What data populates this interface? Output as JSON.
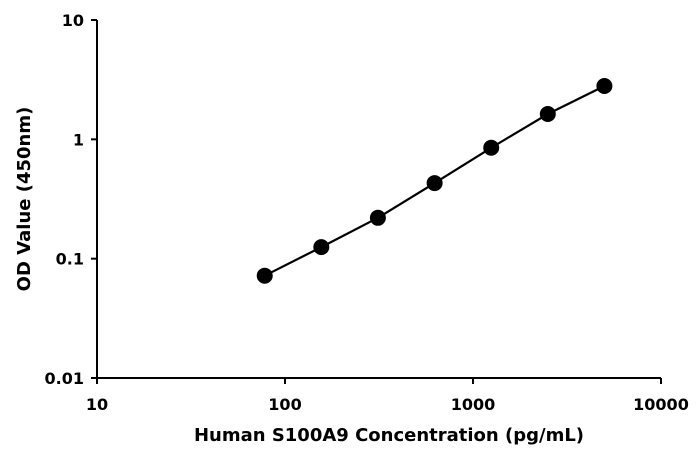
{
  "chart_data": {
    "type": "line",
    "title": "",
    "xlabel": "Human S100A9 Concentration (pg/mL)",
    "ylabel": "OD Value (450nm)",
    "x_scale": "log",
    "y_scale": "log",
    "xlim": [
      10,
      10000
    ],
    "ylim": [
      0.01,
      10
    ],
    "x_ticks": [
      "10",
      "100",
      "1000",
      "10000"
    ],
    "y_ticks": [
      "0.01",
      "0.1",
      "1",
      "10"
    ],
    "grid": false,
    "legend": "none",
    "series": [
      {
        "x": [
          78,
          156,
          312,
          625,
          1250,
          2500,
          5000
        ],
        "y": [
          0.072,
          0.125,
          0.22,
          0.43,
          0.85,
          1.63,
          2.8
        ]
      }
    ],
    "colors": {
      "line": "#000000",
      "marker": "#000000",
      "axis": "#000000"
    }
  }
}
